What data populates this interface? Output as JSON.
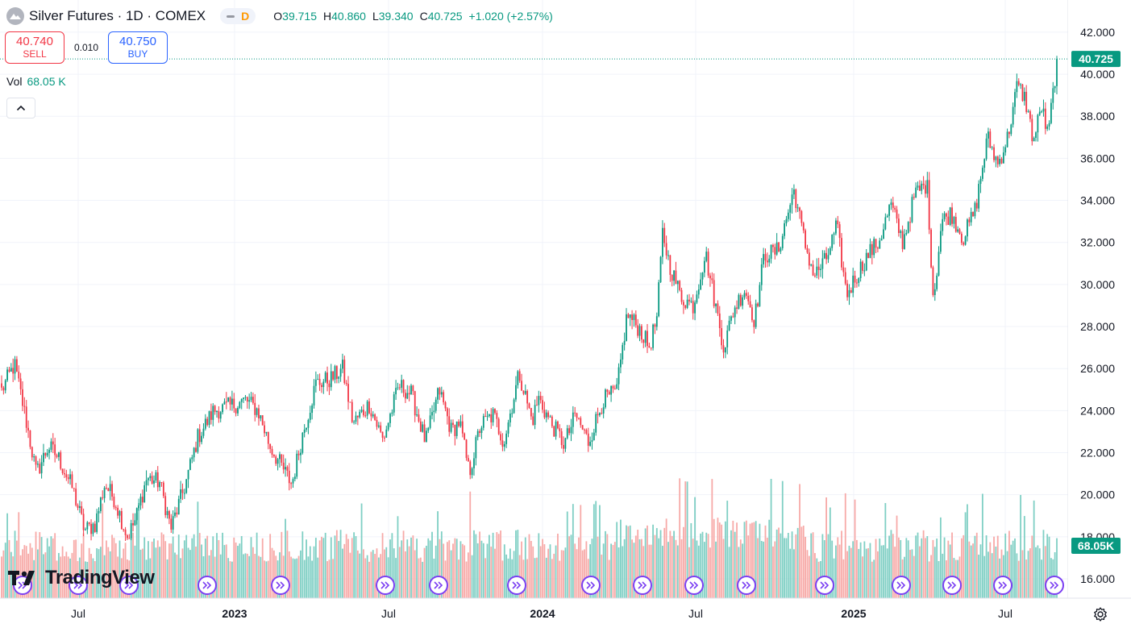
{
  "header": {
    "symbol": "Silver Futures · 1D · COMEX",
    "interval_badge": "D",
    "ohlc": [
      {
        "label": "O",
        "value": "39.715"
      },
      {
        "label": "H",
        "value": "40.860"
      },
      {
        "label": "L",
        "value": "39.340"
      },
      {
        "label": "C",
        "value": "40.725"
      }
    ],
    "change": "+1.020 (+2.57%)"
  },
  "trade": {
    "sell_price": "40.740",
    "sell_label": "SELL",
    "spread": "0.010",
    "buy_price": "40.750",
    "buy_label": "BUY"
  },
  "volume": {
    "label": "Vol",
    "value": "68.05 K"
  },
  "logo_text": "TradingView",
  "colors": {
    "up": "#089981",
    "down": "#f23645",
    "up_vol": "#7fcfc4",
    "down_vol": "#f7a9a7",
    "accent": "#7b3ff2"
  },
  "chart_data": {
    "type": "candlestick",
    "title": "Silver Futures · 1D · COMEX",
    "ylim": [
      15.0,
      42.6
    ],
    "y_ticks": [
      "16.000",
      "18.000",
      "20.000",
      "22.000",
      "24.000",
      "26.000",
      "28.000",
      "30.000",
      "32.000",
      "34.000",
      "36.000",
      "38.000",
      "40.000",
      "42.000"
    ],
    "x_ticks": [
      "Jul",
      "2023",
      "Jul",
      "2024",
      "Jul",
      "2025",
      "Jul"
    ],
    "last_price": "40.725",
    "last_volume": "68.05K",
    "anchors": [
      [
        0,
        24.8
      ],
      [
        18,
        26.2
      ],
      [
        30,
        24.0
      ],
      [
        45,
        21.0
      ],
      [
        60,
        22.3
      ],
      [
        72,
        21.8
      ],
      [
        90,
        20.3
      ],
      [
        105,
        18.3
      ],
      [
        118,
        18.6
      ],
      [
        130,
        20.5
      ],
      [
        142,
        19.8
      ],
      [
        158,
        18.0
      ],
      [
        168,
        18.8
      ],
      [
        182,
        20.8
      ],
      [
        198,
        20.6
      ],
      [
        212,
        18.4
      ],
      [
        230,
        20.5
      ],
      [
        245,
        22.7
      ],
      [
        265,
        24.0
      ],
      [
        285,
        24.2
      ],
      [
        305,
        24.5
      ],
      [
        320,
        24.0
      ],
      [
        335,
        22.3
      ],
      [
        350,
        21.3
      ],
      [
        362,
        20.5
      ],
      [
        375,
        22.8
      ],
      [
        392,
        25.3
      ],
      [
        410,
        25.5
      ],
      [
        425,
        26.0
      ],
      [
        438,
        23.4
      ],
      [
        458,
        24.3
      ],
      [
        475,
        22.6
      ],
      [
        495,
        25.2
      ],
      [
        510,
        24.8
      ],
      [
        528,
        22.5
      ],
      [
        545,
        25.0
      ],
      [
        560,
        23.0
      ],
      [
        570,
        23.5
      ],
      [
        582,
        21.0
      ],
      [
        596,
        23.3
      ],
      [
        612,
        23.8
      ],
      [
        625,
        22.5
      ],
      [
        644,
        25.8
      ],
      [
        660,
        23.5
      ],
      [
        668,
        24.6
      ],
      [
        682,
        23.5
      ],
      [
        700,
        22.4
      ],
      [
        714,
        23.8
      ],
      [
        730,
        22.5
      ],
      [
        748,
        24.5
      ],
      [
        765,
        24.9
      ],
      [
        778,
        28.6
      ],
      [
        795,
        27.8
      ],
      [
        805,
        27.0
      ],
      [
        815,
        28.4
      ],
      [
        822,
        32.5
      ],
      [
        830,
        31.0
      ],
      [
        845,
        29.4
      ],
      [
        860,
        29.0
      ],
      [
        875,
        31.5
      ],
      [
        885,
        29.5
      ],
      [
        898,
        27.0
      ],
      [
        910,
        28.8
      ],
      [
        924,
        29.8
      ],
      [
        936,
        28.3
      ],
      [
        948,
        31.4
      ],
      [
        965,
        31.6
      ],
      [
        985,
        34.5
      ],
      [
        998,
        32.0
      ],
      [
        1010,
        30.4
      ],
      [
        1025,
        31.2
      ],
      [
        1038,
        32.8
      ],
      [
        1050,
        29.5
      ],
      [
        1062,
        30.4
      ],
      [
        1078,
        31.5
      ],
      [
        1090,
        32.0
      ],
      [
        1105,
        33.8
      ],
      [
        1120,
        32.0
      ],
      [
        1135,
        34.3
      ],
      [
        1150,
        34.8
      ],
      [
        1158,
        29.2
      ],
      [
        1168,
        33.0
      ],
      [
        1180,
        33.4
      ],
      [
        1195,
        32.2
      ],
      [
        1210,
        33.6
      ],
      [
        1225,
        37.0
      ],
      [
        1238,
        35.7
      ],
      [
        1250,
        37.0
      ],
      [
        1262,
        39.5
      ],
      [
        1272,
        38.8
      ],
      [
        1282,
        36.8
      ],
      [
        1292,
        38.5
      ],
      [
        1300,
        37.0
      ],
      [
        1308,
        39.7
      ],
      [
        1312,
        40.72
      ]
    ]
  }
}
